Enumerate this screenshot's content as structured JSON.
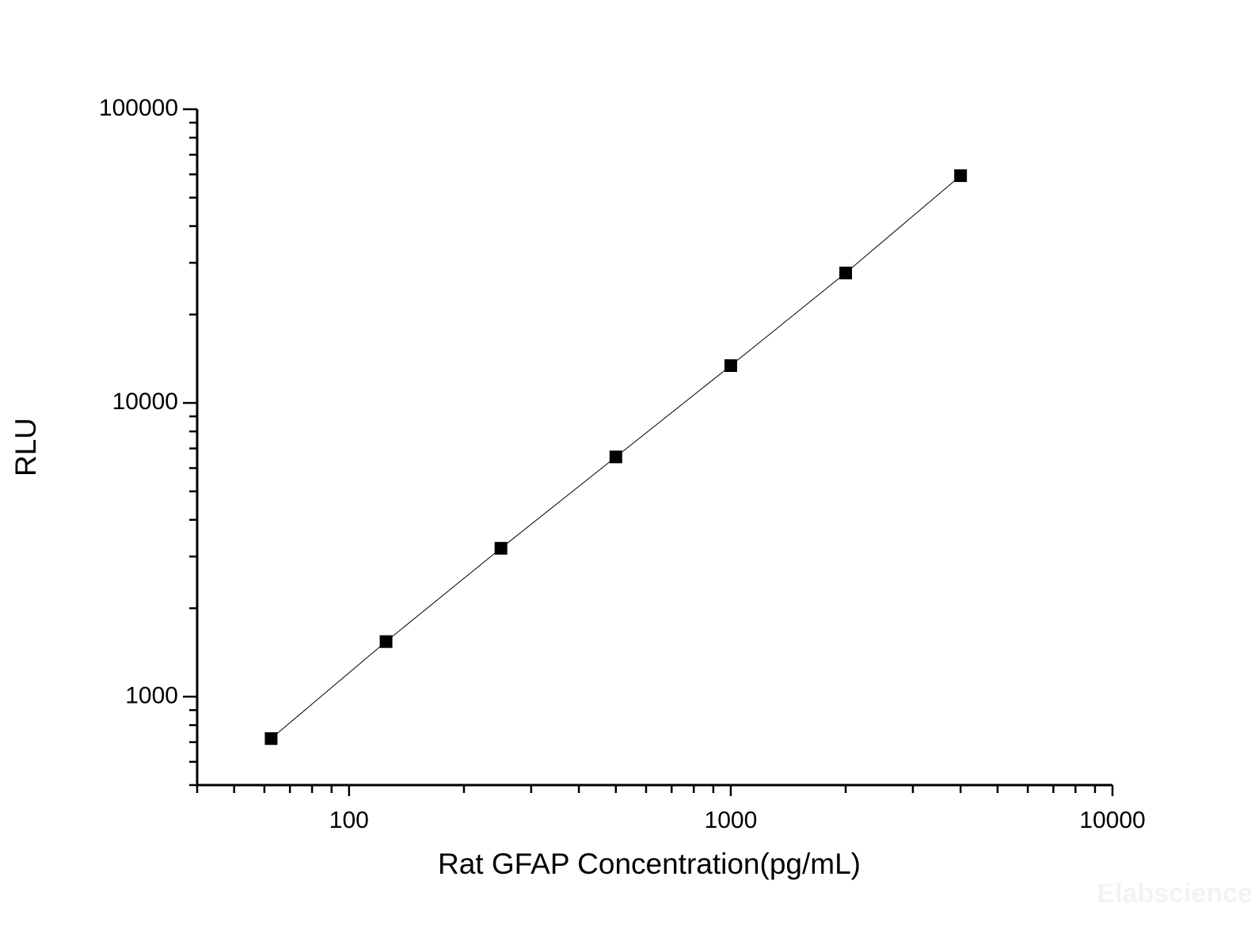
{
  "chart_data": {
    "type": "scatter",
    "title": "",
    "xlabel": "Rat GFAP Concentration(pg/mL)",
    "ylabel": "RLU",
    "xscale": "log",
    "yscale": "log",
    "xlim": [
      40,
      10000
    ],
    "ylim": [
      500,
      100000
    ],
    "xticks": [
      100,
      1000,
      10000
    ],
    "xtick_labels": [
      "100",
      "1000",
      "10000"
    ],
    "yticks": [
      1000,
      10000,
      100000
    ],
    "ytick_labels": [
      "1000",
      "10000",
      "100000"
    ],
    "grid": false,
    "legend": "none",
    "marker": "square",
    "connected_line": true,
    "colors": {
      "marker": "#000000",
      "line": "#000000",
      "axis": "#000000"
    },
    "series": [
      {
        "x": [
          62.5,
          125,
          250,
          500,
          1000,
          2000,
          4000
        ],
        "y": [
          720,
          1540,
          3200,
          6550,
          13400,
          27700,
          59400
        ]
      }
    ]
  },
  "watermark": "Elabscience"
}
